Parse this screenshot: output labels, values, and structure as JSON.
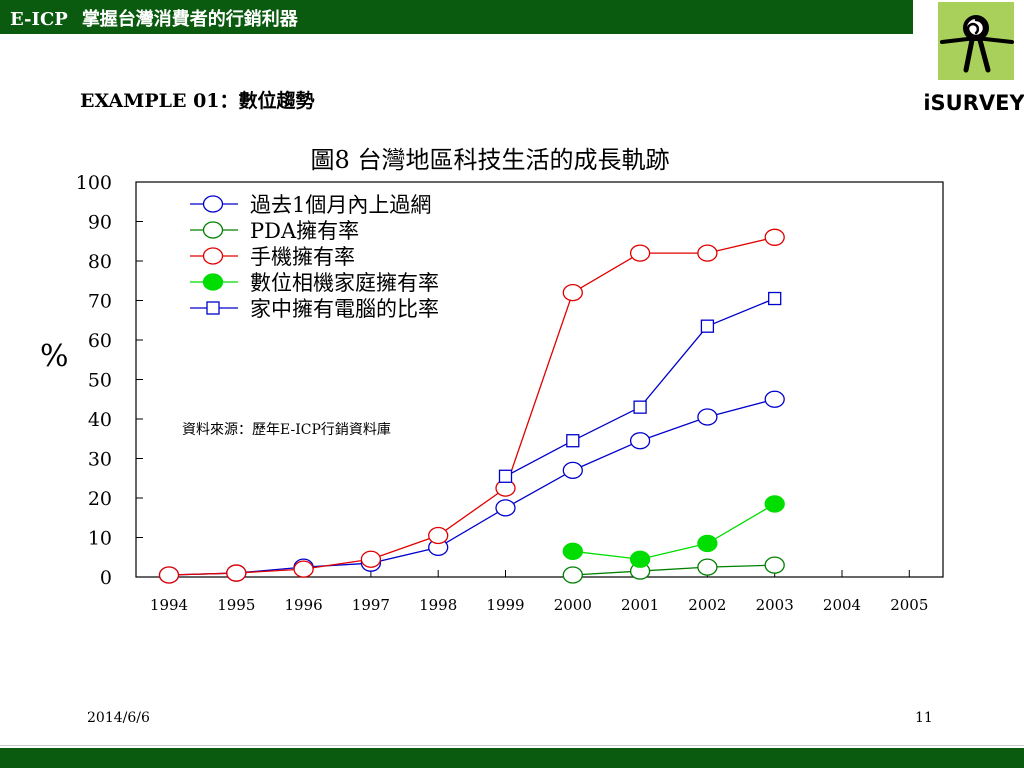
{
  "header": {
    "brand": "E-ICP",
    "tagline": "掌握台灣消費者的行銷利器"
  },
  "logo": {
    "text": "iSURVEY",
    "icon": "eye-spiral-icon",
    "color": "#a8d05a"
  },
  "example_label": "EXAMPLE 01：數位趨勢",
  "footer": {
    "date": "2014/6/6",
    "page": "11"
  },
  "colors": {
    "bar": "#0a5a10"
  },
  "chart_data": {
    "type": "line",
    "title": "圖8  台灣地區科技生活的成長軌跡",
    "ylabel": "%",
    "xlabel": "",
    "ylim": [
      0,
      100
    ],
    "yticks": [
      0,
      10,
      20,
      30,
      40,
      50,
      60,
      70,
      80,
      90,
      100
    ],
    "categories": [
      "1994",
      "1995",
      "1996",
      "1997",
      "1998",
      "1999",
      "2000",
      "2001",
      "2002",
      "2003",
      "2004",
      "2005"
    ],
    "annotation": "資料來源：歷年E-ICP行銷資料庫",
    "legend_position": "top-left",
    "grid": false,
    "series": [
      {
        "name": "過去1個月內上過網",
        "color": "#0000cc",
        "marker": "circle-open",
        "values": [
          0.5,
          1,
          2.5,
          3.5,
          7.5,
          17.5,
          27,
          34.5,
          40.5,
          45,
          null,
          null
        ]
      },
      {
        "name": "PDA擁有率",
        "color": "#008000",
        "marker": "circle-open",
        "values": [
          null,
          null,
          null,
          null,
          null,
          null,
          0.5,
          1.5,
          2.5,
          3,
          null,
          null
        ]
      },
      {
        "name": "手機擁有率",
        "color": "#e00000",
        "marker": "circle-open",
        "values": [
          0.5,
          1,
          2,
          4.5,
          10.5,
          22.5,
          72,
          82,
          82,
          86,
          null,
          null
        ]
      },
      {
        "name": "數位相機家庭擁有率",
        "color": "#00dd00",
        "marker": "circle-filled",
        "values": [
          null,
          null,
          null,
          null,
          null,
          null,
          6.5,
          4.5,
          8.5,
          18.5,
          null,
          null
        ]
      },
      {
        "name": "家中擁有電腦的比率",
        "color": "#0000cc",
        "marker": "square-open",
        "values": [
          null,
          null,
          null,
          null,
          null,
          25.5,
          34.5,
          43,
          63.5,
          70.5,
          null,
          null
        ]
      }
    ]
  }
}
